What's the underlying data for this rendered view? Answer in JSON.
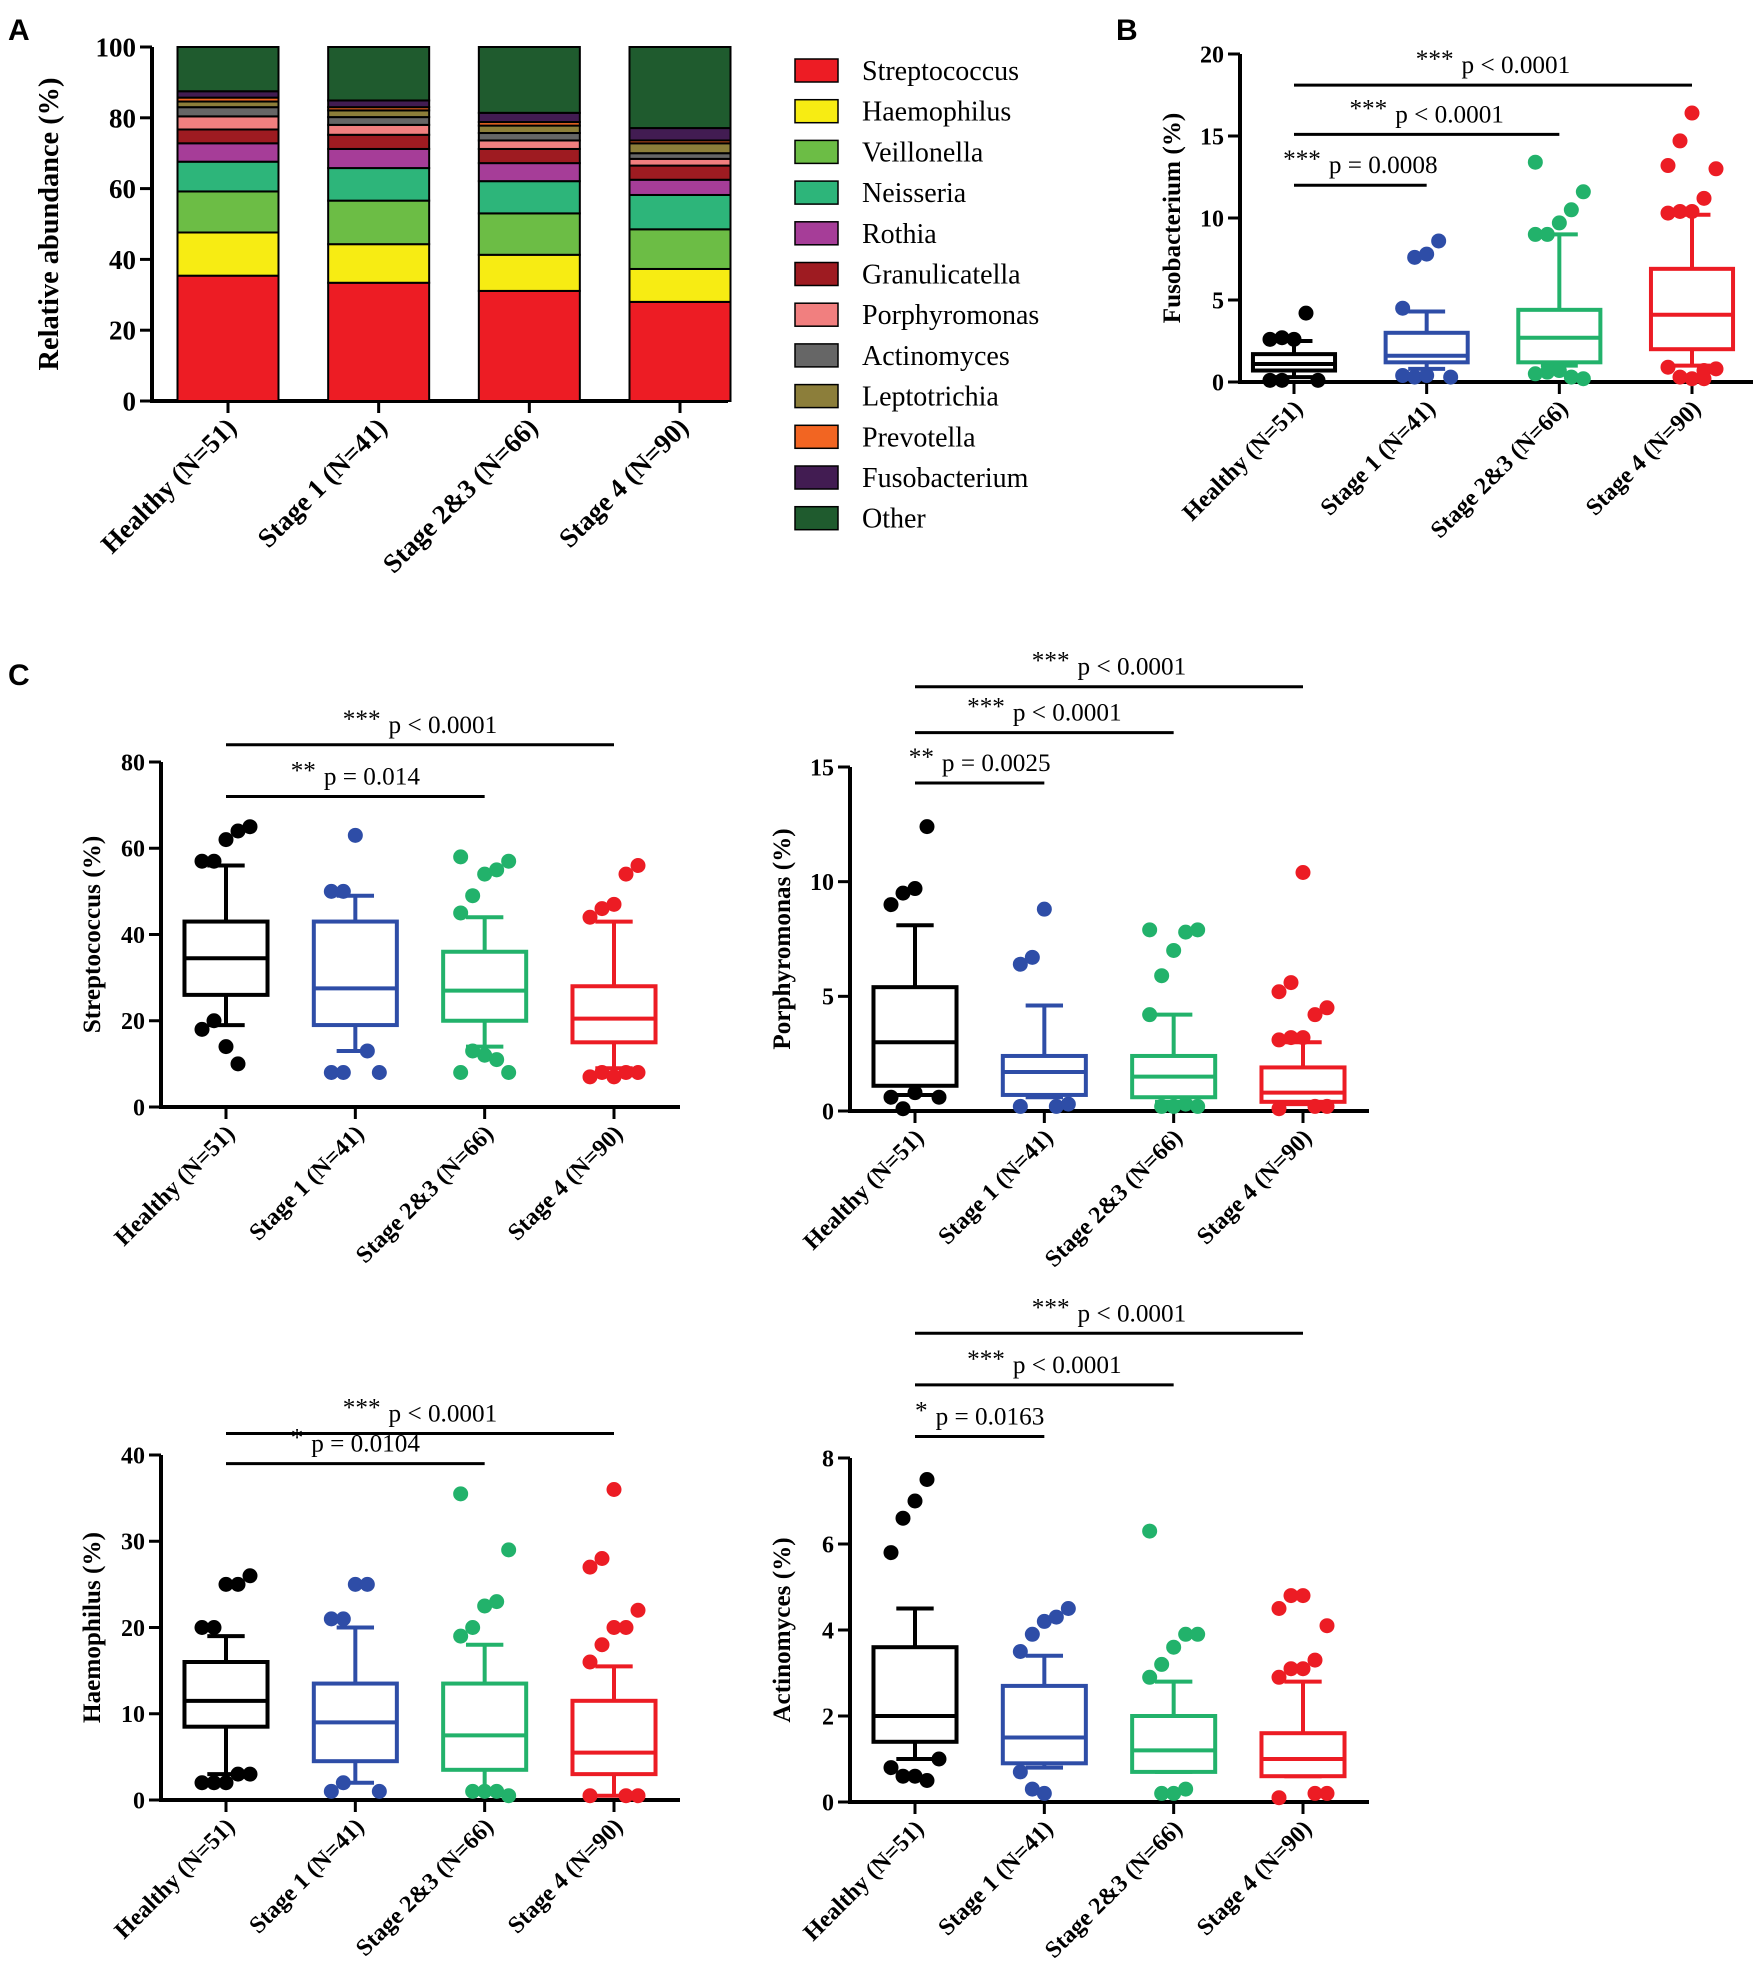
{
  "chart_data": [
    {
      "panel": "A",
      "type": "bar",
      "stacked": true,
      "ylabel": "Relative abundance (%)",
      "ylim": [
        0,
        100
      ],
      "yticks": [
        "0",
        "20",
        "40",
        "60",
        "80",
        "100"
      ],
      "categories": [
        "Healthy (N=51)",
        "Stage 1 (N=41)",
        "Stage 2&3 (N=66)",
        "Stage 4 (N=90)"
      ],
      "legend_position": "right",
      "series": [
        {
          "name": "Streptococcus",
          "color": "#ed1c24",
          "values": [
            35.4,
            33.4,
            31.1,
            28.0
          ]
        },
        {
          "name": "Haemophilus",
          "color": "#f7ec13",
          "values": [
            12.2,
            10.9,
            10.2,
            9.3
          ]
        },
        {
          "name": "Veillonella",
          "color": "#6cbd45",
          "values": [
            11.6,
            12.3,
            11.7,
            11.2
          ]
        },
        {
          "name": "Neisseria",
          "color": "#2db57a",
          "values": [
            8.4,
            9.2,
            9.1,
            9.7
          ]
        },
        {
          "name": "Rothia",
          "color": "#a63d98",
          "values": [
            5.2,
            5.4,
            5.1,
            4.3
          ]
        },
        {
          "name": "Granulicatella",
          "color": "#9e1b21",
          "values": [
            3.9,
            4.0,
            4.0,
            4.0
          ]
        },
        {
          "name": "Porphyromonas",
          "color": "#f17f7f",
          "values": [
            3.7,
            2.8,
            2.4,
            1.9
          ]
        },
        {
          "name": "Actinomyces",
          "color": "#666666",
          "values": [
            2.6,
            2.2,
            2.1,
            1.6
          ]
        },
        {
          "name": "Leptotrichia",
          "color": "#8c7e3a",
          "values": [
            1.6,
            1.9,
            2.1,
            2.8
          ]
        },
        {
          "name": "Prevotella",
          "color": "#f26522",
          "values": [
            1.1,
            0.9,
            1.0,
            0.8
          ]
        },
        {
          "name": "Fusobacterium",
          "color": "#421c52",
          "values": [
            1.8,
            1.9,
            2.6,
            3.5
          ]
        },
        {
          "name": "Other",
          "color": "#1f5b2e",
          "values": [
            12.5,
            15.1,
            18.6,
            22.9
          ]
        }
      ]
    },
    {
      "panel": "B",
      "type": "box",
      "ylabel": "Fusobacterium (%)",
      "ylim": [
        0,
        20
      ],
      "yticks": [
        "0",
        "5",
        "10",
        "15",
        "20"
      ],
      "categories": [
        "Healthy (N=51)",
        "Stage 1 (N=41)",
        "Stage 2&3 (N=66)",
        "Stage 4 (N=90)"
      ],
      "colors": [
        "#000000",
        "#2e4da7",
        "#22b26b",
        "#ec1c24"
      ],
      "boxes": [
        {
          "whisker_low": 0.3,
          "q1": 0.7,
          "median": 1.1,
          "q3": 1.7,
          "whisker_high": 2.5,
          "outliers": [
            2.6,
            2.7,
            2.6,
            4.2,
            0.1,
            0.1,
            0.1
          ]
        },
        {
          "whisker_low": 0.8,
          "q1": 1.2,
          "median": 1.6,
          "q3": 3.0,
          "whisker_high": 4.3,
          "outliers": [
            4.5,
            7.6,
            7.8,
            8.6,
            0.3,
            0.4,
            0.3,
            0.4
          ]
        },
        {
          "whisker_low": 1.0,
          "q1": 1.2,
          "median": 2.7,
          "q3": 4.4,
          "whisker_high": 9.0,
          "outliers": [
            9.0,
            9.0,
            9.7,
            10.5,
            11.6,
            13.4,
            0.6,
            0.7,
            0.3,
            0.2,
            0.5
          ]
        },
        {
          "whisker_low": 1.0,
          "q1": 2.0,
          "median": 4.1,
          "q3": 6.9,
          "whisker_high": 10.2,
          "outliers": [
            10.3,
            10.4,
            10.4,
            11.2,
            13.0,
            13.2,
            14.7,
            16.4,
            0.7,
            0.8,
            0.9,
            0.3,
            0.2,
            0.2
          ]
        }
      ],
      "comparisons": [
        {
          "from": 0,
          "to": 1,
          "y": 12.0,
          "stars": "***",
          "p_text": "p = 0.0008"
        },
        {
          "from": 0,
          "to": 2,
          "y": 15.1,
          "stars": "***",
          "p_text": "p < 0.0001"
        },
        {
          "from": 0,
          "to": 3,
          "y": 18.1,
          "stars": "***",
          "p_text": "p < 0.0001"
        }
      ]
    },
    {
      "panel": "C1",
      "type": "box",
      "ylabel": "Streptococcus (%)",
      "ylim": [
        0,
        80
      ],
      "yticks": [
        "0",
        "20",
        "40",
        "60",
        "80"
      ],
      "categories": [
        "Healthy (N=51)",
        "Stage 1 (N=41)",
        "Stage 2&3 (N=66)",
        "Stage 4 (N=90)"
      ],
      "colors": [
        "#000000",
        "#2e4da7",
        "#22b26b",
        "#ec1c24"
      ],
      "boxes": [
        {
          "whisker_low": 19,
          "q1": 26,
          "median": 34.5,
          "q3": 43,
          "whisker_high": 56,
          "outliers": [
            57,
            57,
            62,
            64,
            65,
            18,
            20,
            14,
            10
          ]
        },
        {
          "whisker_low": 13,
          "q1": 19,
          "median": 27.5,
          "q3": 43,
          "whisker_high": 49,
          "outliers": [
            50,
            50,
            63,
            13,
            8,
            8,
            8
          ]
        },
        {
          "whisker_low": 14,
          "q1": 20,
          "median": 27,
          "q3": 36,
          "whisker_high": 44,
          "outliers": [
            45,
            49,
            54,
            55,
            57,
            58,
            13,
            12,
            11,
            8,
            8
          ]
        },
        {
          "whisker_low": 9,
          "q1": 15,
          "median": 20.5,
          "q3": 28,
          "whisker_high": 43,
          "outliers": [
            44,
            46,
            47,
            54,
            56,
            7,
            8,
            7,
            8,
            8
          ]
        }
      ],
      "comparisons": [
        {
          "from": 0,
          "to": 2,
          "y": 72,
          "stars": "**",
          "p_text": "p = 0.014"
        },
        {
          "from": 0,
          "to": 3,
          "y": 84,
          "stars": "***",
          "p_text": "p < 0.0001"
        }
      ]
    },
    {
      "panel": "C2",
      "type": "box",
      "ylabel": "Porphyromonas (%)",
      "ylim": [
        0,
        15
      ],
      "yticks": [
        "0",
        "5",
        "10",
        "15"
      ],
      "categories": [
        "Healthy (N=51)",
        "Stage 1 (N=41)",
        "Stage 2&3 (N=66)",
        "Stage 4 (N=90)"
      ],
      "colors": [
        "#000000",
        "#2e4da7",
        "#22b26b",
        "#ec1c24"
      ],
      "boxes": [
        {
          "whisker_low": 0.7,
          "q1": 1.1,
          "median": 3.0,
          "q3": 5.4,
          "whisker_high": 8.1,
          "outliers": [
            9.0,
            9.5,
            9.7,
            12.4,
            0.6,
            0.6,
            0.1,
            0.8
          ]
        },
        {
          "whisker_low": 0.6,
          "q1": 0.7,
          "median": 1.7,
          "q3": 2.4,
          "whisker_high": 4.6,
          "outliers": [
            6.4,
            6.7,
            8.8,
            0.2,
            0.3,
            0.2
          ]
        },
        {
          "whisker_low": 0.4,
          "q1": 0.6,
          "median": 1.5,
          "q3": 2.4,
          "whisker_high": 4.2,
          "outliers": [
            4.2,
            5.9,
            7.0,
            7.8,
            7.9,
            7.9,
            0.2,
            0.2,
            0.3,
            0.2
          ]
        },
        {
          "whisker_low": 0.3,
          "q1": 0.4,
          "median": 0.8,
          "q3": 1.9,
          "whisker_high": 3.0,
          "outliers": [
            3.1,
            3.2,
            3.2,
            4.2,
            4.5,
            5.2,
            5.6,
            10.4,
            0.2,
            0.2,
            0.1
          ]
        }
      ],
      "comparisons": [
        {
          "from": 0,
          "to": 1,
          "y": 14.3,
          "stars": "**",
          "p_text": "p = 0.0025"
        },
        {
          "from": 0,
          "to": 2,
          "y": 16.5,
          "stars": "***",
          "p_text": "p < 0.0001"
        },
        {
          "from": 0,
          "to": 3,
          "y": 18.5,
          "stars": "***",
          "p_text": "p < 0.0001"
        }
      ]
    },
    {
      "panel": "C3",
      "type": "box",
      "ylabel": "Haemophilus (%)",
      "ylim": [
        0,
        40
      ],
      "yticks": [
        "0",
        "10",
        "20",
        "30",
        "40"
      ],
      "categories": [
        "Healthy (N=51)",
        "Stage 1 (N=41)",
        "Stage 2&3 (N=66)",
        "Stage 4 (N=90)"
      ],
      "colors": [
        "#000000",
        "#2e4da7",
        "#22b26b",
        "#ec1c24"
      ],
      "boxes": [
        {
          "whisker_low": 3,
          "q1": 8.5,
          "median": 11.5,
          "q3": 16,
          "whisker_high": 19,
          "outliers": [
            20,
            20,
            25,
            25,
            26,
            2,
            2,
            2,
            3,
            3
          ]
        },
        {
          "whisker_low": 2,
          "q1": 4.5,
          "median": 9,
          "q3": 13.5,
          "whisker_high": 20,
          "outliers": [
            21,
            21,
            25,
            25,
            1,
            1,
            2
          ]
        },
        {
          "whisker_low": 1,
          "q1": 3.5,
          "median": 7.5,
          "q3": 13.5,
          "whisker_high": 18,
          "outliers": [
            19,
            20,
            22.5,
            23,
            29,
            35.5,
            1,
            1,
            1,
            0.5
          ]
        },
        {
          "whisker_low": 0.5,
          "q1": 3,
          "median": 5.5,
          "q3": 11.5,
          "whisker_high": 15.5,
          "outliers": [
            16,
            18,
            20,
            20,
            22,
            27,
            28,
            36,
            0.5,
            0.5,
            0.5
          ]
        }
      ],
      "comparisons": [
        {
          "from": 0,
          "to": 2,
          "y": 39,
          "stars": "*",
          "p_text": "p = 0.0104"
        },
        {
          "from": 0,
          "to": 3,
          "y": 42.5,
          "stars": "***",
          "p_text": "p < 0.0001"
        }
      ]
    },
    {
      "panel": "C4",
      "type": "box",
      "ylabel": "Actinomyces (%)",
      "ylim": [
        0,
        8
      ],
      "yticks": [
        "0",
        "2",
        "4",
        "6",
        "8"
      ],
      "categories": [
        "Healthy (N=51)",
        "Stage 1 (N=41)",
        "Stage 2&3 (N=66)",
        "Stage 4 (N=90)"
      ],
      "colors": [
        "#000000",
        "#2e4da7",
        "#22b26b",
        "#ec1c24"
      ],
      "boxes": [
        {
          "whisker_low": 1.0,
          "q1": 1.4,
          "median": 2.0,
          "q3": 3.6,
          "whisker_high": 4.5,
          "outliers": [
            5.8,
            6.6,
            7.0,
            7.5,
            1.0,
            0.8,
            0.6,
            0.6,
            0.5
          ]
        },
        {
          "whisker_low": 0.8,
          "q1": 0.9,
          "median": 1.5,
          "q3": 2.7,
          "whisker_high": 3.4,
          "outliers": [
            3.5,
            3.9,
            4.2,
            4.3,
            4.5,
            0.7,
            0.3,
            0.2
          ]
        },
        {
          "whisker_low": 0.7,
          "q1": 0.7,
          "median": 1.2,
          "q3": 2.0,
          "whisker_high": 2.8,
          "outliers": [
            2.9,
            3.2,
            3.6,
            3.9,
            3.9,
            6.3,
            0.2,
            0.2,
            0.3
          ]
        },
        {
          "whisker_low": 0.6,
          "q1": 0.6,
          "median": 1.0,
          "q3": 1.6,
          "whisker_high": 2.8,
          "outliers": [
            2.9,
            3.1,
            3.1,
            3.3,
            4.1,
            4.5,
            4.8,
            4.8,
            0.2,
            0.2,
            0.1
          ]
        }
      ],
      "comparisons": [
        {
          "from": 0,
          "to": 1,
          "y": 8.5,
          "stars": "*",
          "p_text": "p = 0.0163"
        },
        {
          "from": 0,
          "to": 2,
          "y": 9.7,
          "stars": "***",
          "p_text": "p < 0.0001"
        },
        {
          "from": 0,
          "to": 3,
          "y": 10.9,
          "stars": "***",
          "p_text": "p < 0.0001"
        }
      ]
    }
  ],
  "panel_letters": [
    "A",
    "B",
    "C"
  ]
}
